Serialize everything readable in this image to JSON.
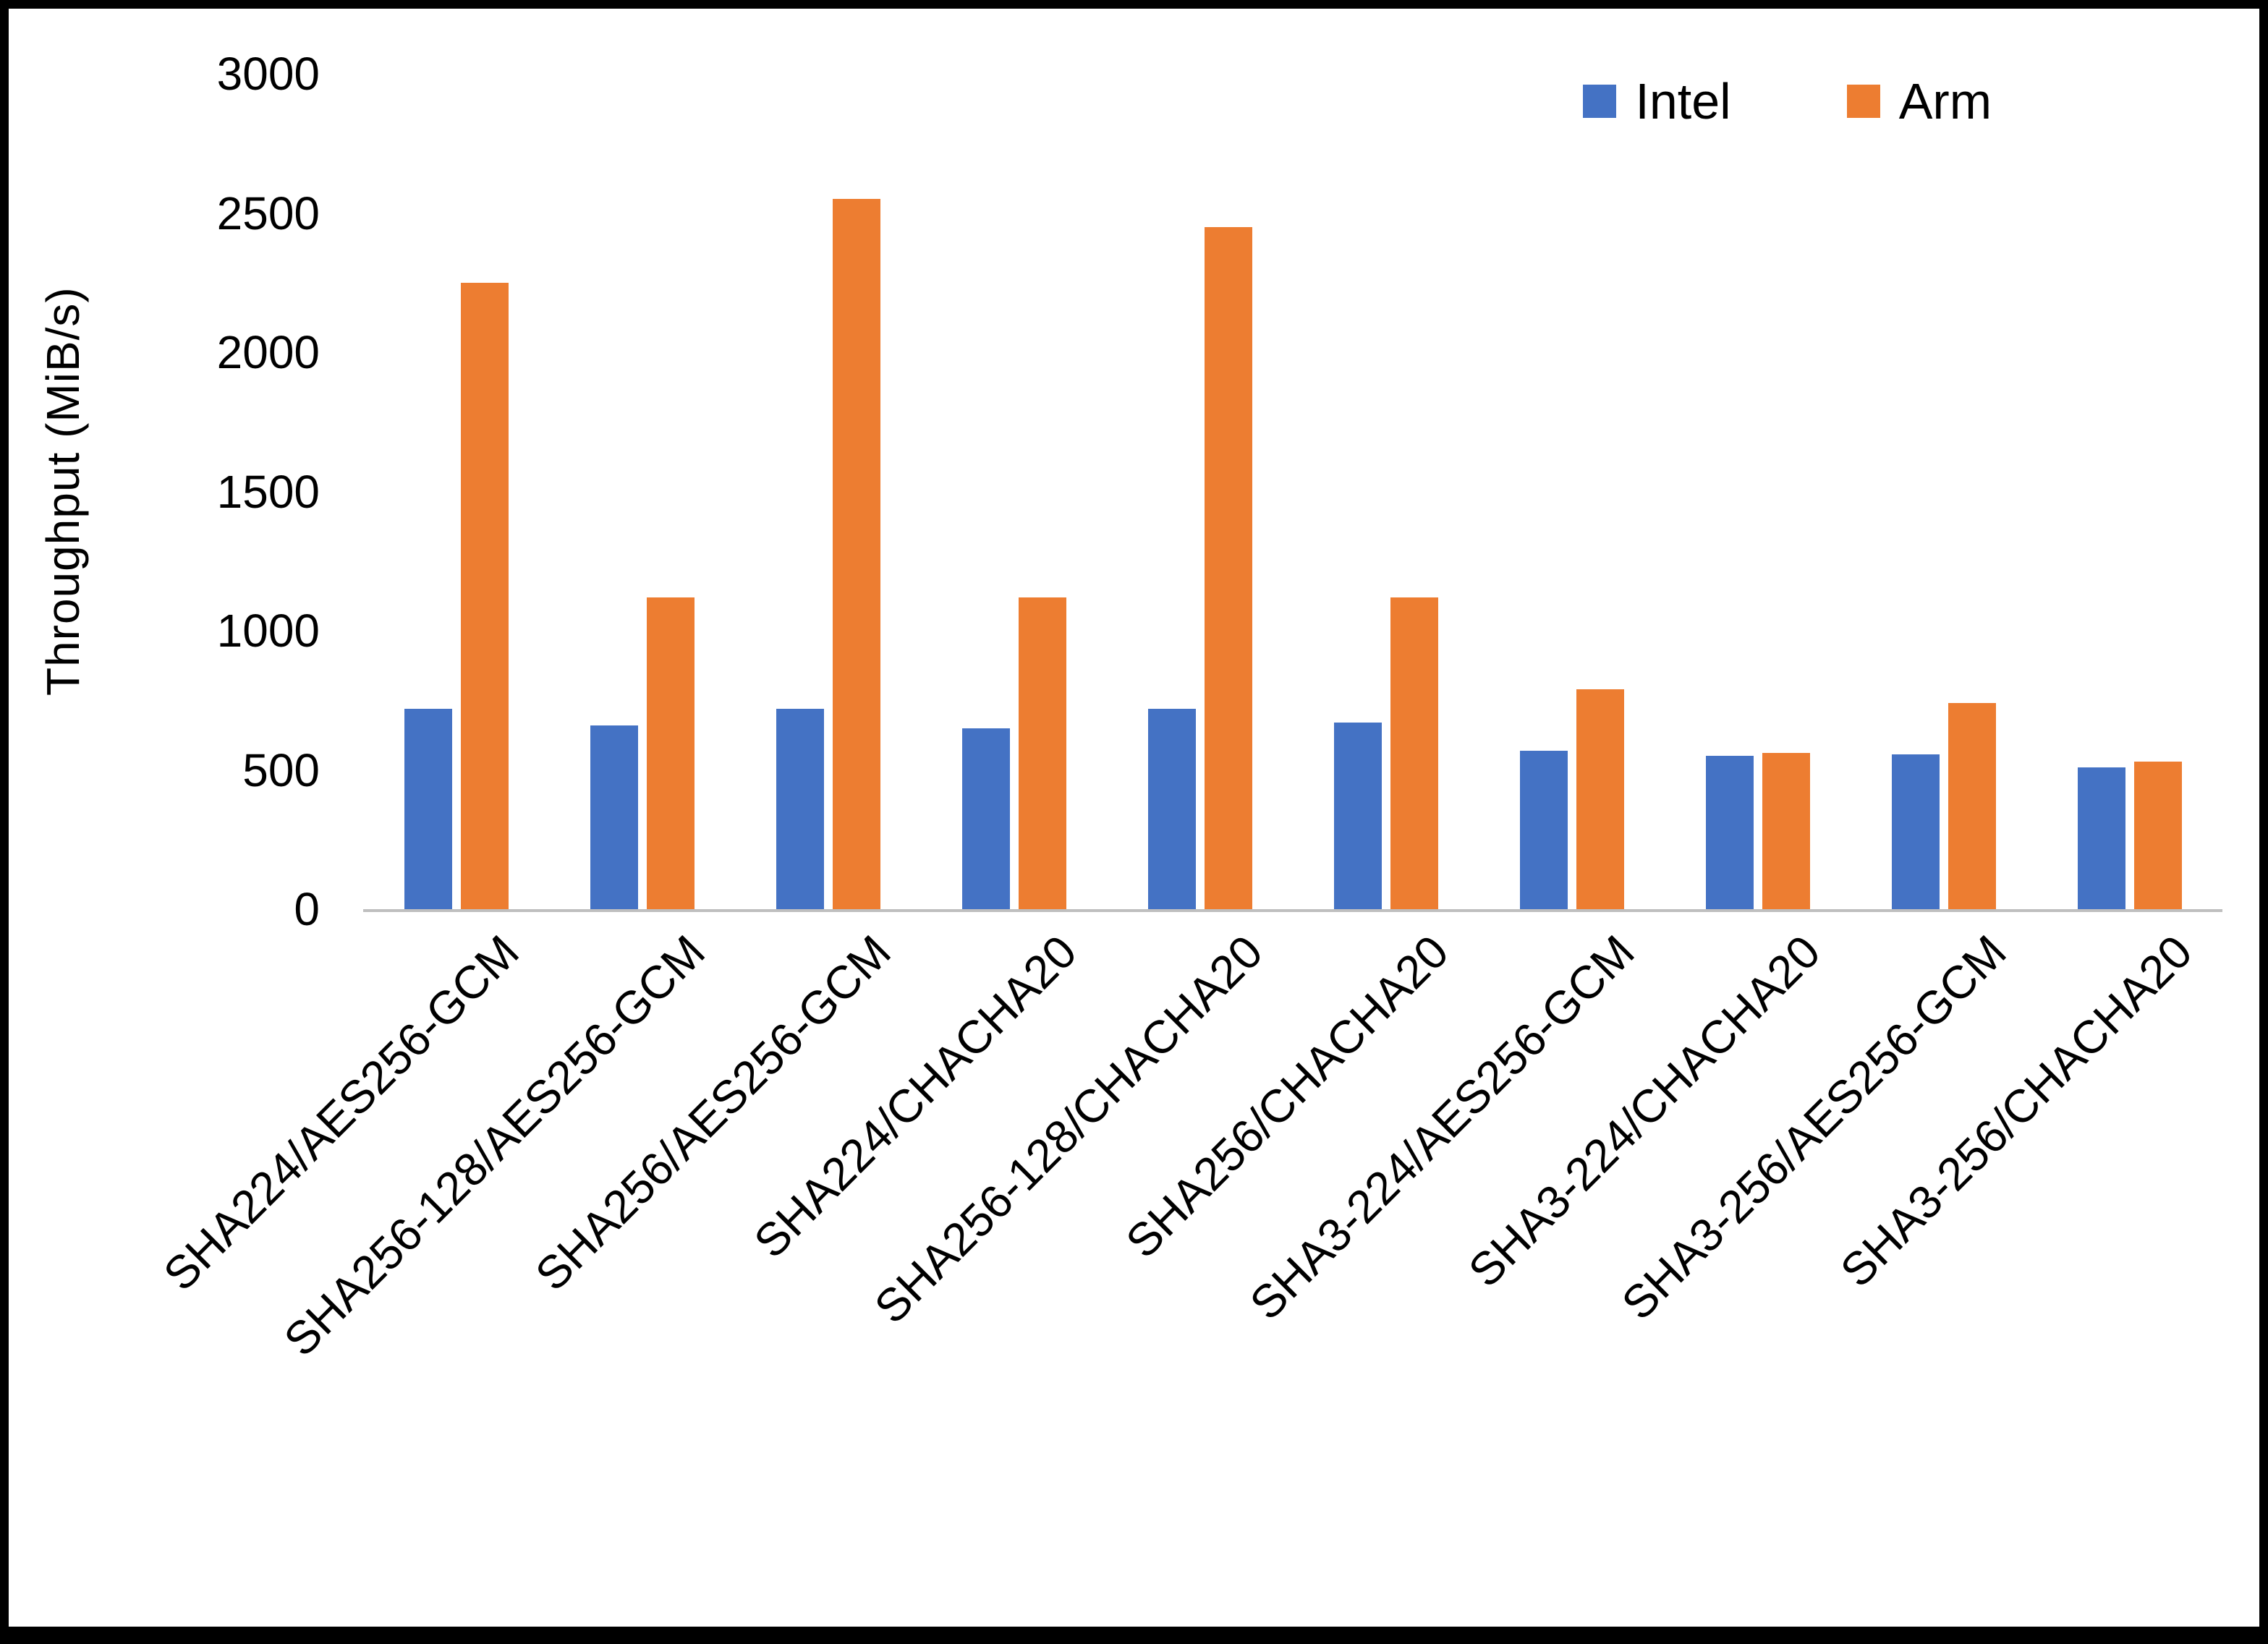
{
  "chart_data": {
    "type": "bar",
    "title": "",
    "xlabel": "",
    "ylabel": "Throughput (MiB/s)",
    "ylim": [
      0,
      3000
    ],
    "yticks": [
      0,
      500,
      1000,
      1500,
      2000,
      2500,
      3000
    ],
    "grid": false,
    "legend_position": "top-right",
    "categories": [
      "SHA224/AES256-GCM",
      "SHA256-128/AES256-GCM",
      "SHA256/AES256-GCM",
      "SHA224/CHACHA20",
      "SHA256-128/CHACHA20",
      "SHA256/CHACHA20",
      "SHA3-224/AES256-GCM",
      "SHA3-224/CHACHA20",
      "SHA3-256/AES256-GCM",
      "SHA3-256/CHACHA20"
    ],
    "series": [
      {
        "name": "Intel",
        "color": "#4472C4",
        "values": [
          720,
          660,
          720,
          650,
          720,
          670,
          570,
          550,
          555,
          510
        ]
      },
      {
        "name": "Arm",
        "color": "#ED7D31",
        "values": [
          2250,
          1120,
          2550,
          1120,
          2450,
          1120,
          790,
          560,
          740,
          530
        ]
      }
    ]
  }
}
